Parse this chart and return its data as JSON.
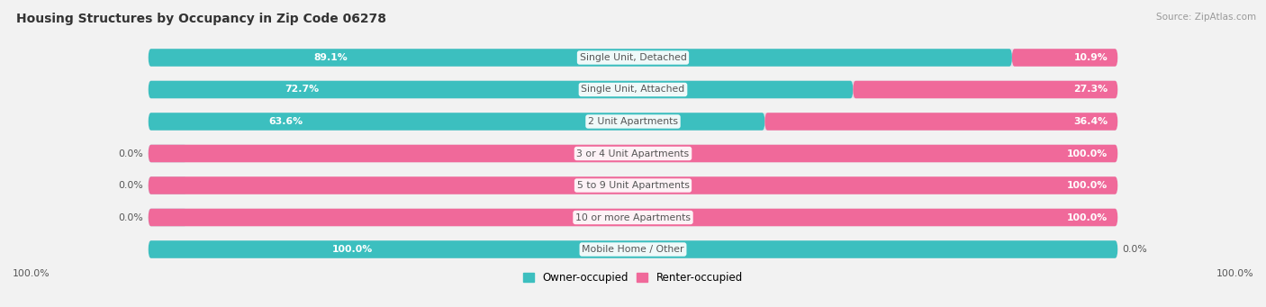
{
  "title": "Housing Structures by Occupancy in Zip Code 06278",
  "source": "Source: ZipAtlas.com",
  "categories": [
    "Single Unit, Detached",
    "Single Unit, Attached",
    "2 Unit Apartments",
    "3 or 4 Unit Apartments",
    "5 to 9 Unit Apartments",
    "10 or more Apartments",
    "Mobile Home / Other"
  ],
  "owner_pct": [
    89.1,
    72.7,
    63.6,
    0.0,
    0.0,
    0.0,
    100.0
  ],
  "renter_pct": [
    10.9,
    27.3,
    36.4,
    100.0,
    100.0,
    100.0,
    0.0
  ],
  "owner_color": "#3CBFBF",
  "renter_color": "#F0699A",
  "owner_zero_color": "#A8DCDC",
  "bg_color": "#F2F2F2",
  "row_bg_color": "#E2E2EA",
  "title_color": "#333333",
  "source_color": "#999999",
  "white": "#FFFFFF",
  "dark_label": "#555555",
  "figsize": [
    14.06,
    3.41
  ],
  "dpi": 100
}
